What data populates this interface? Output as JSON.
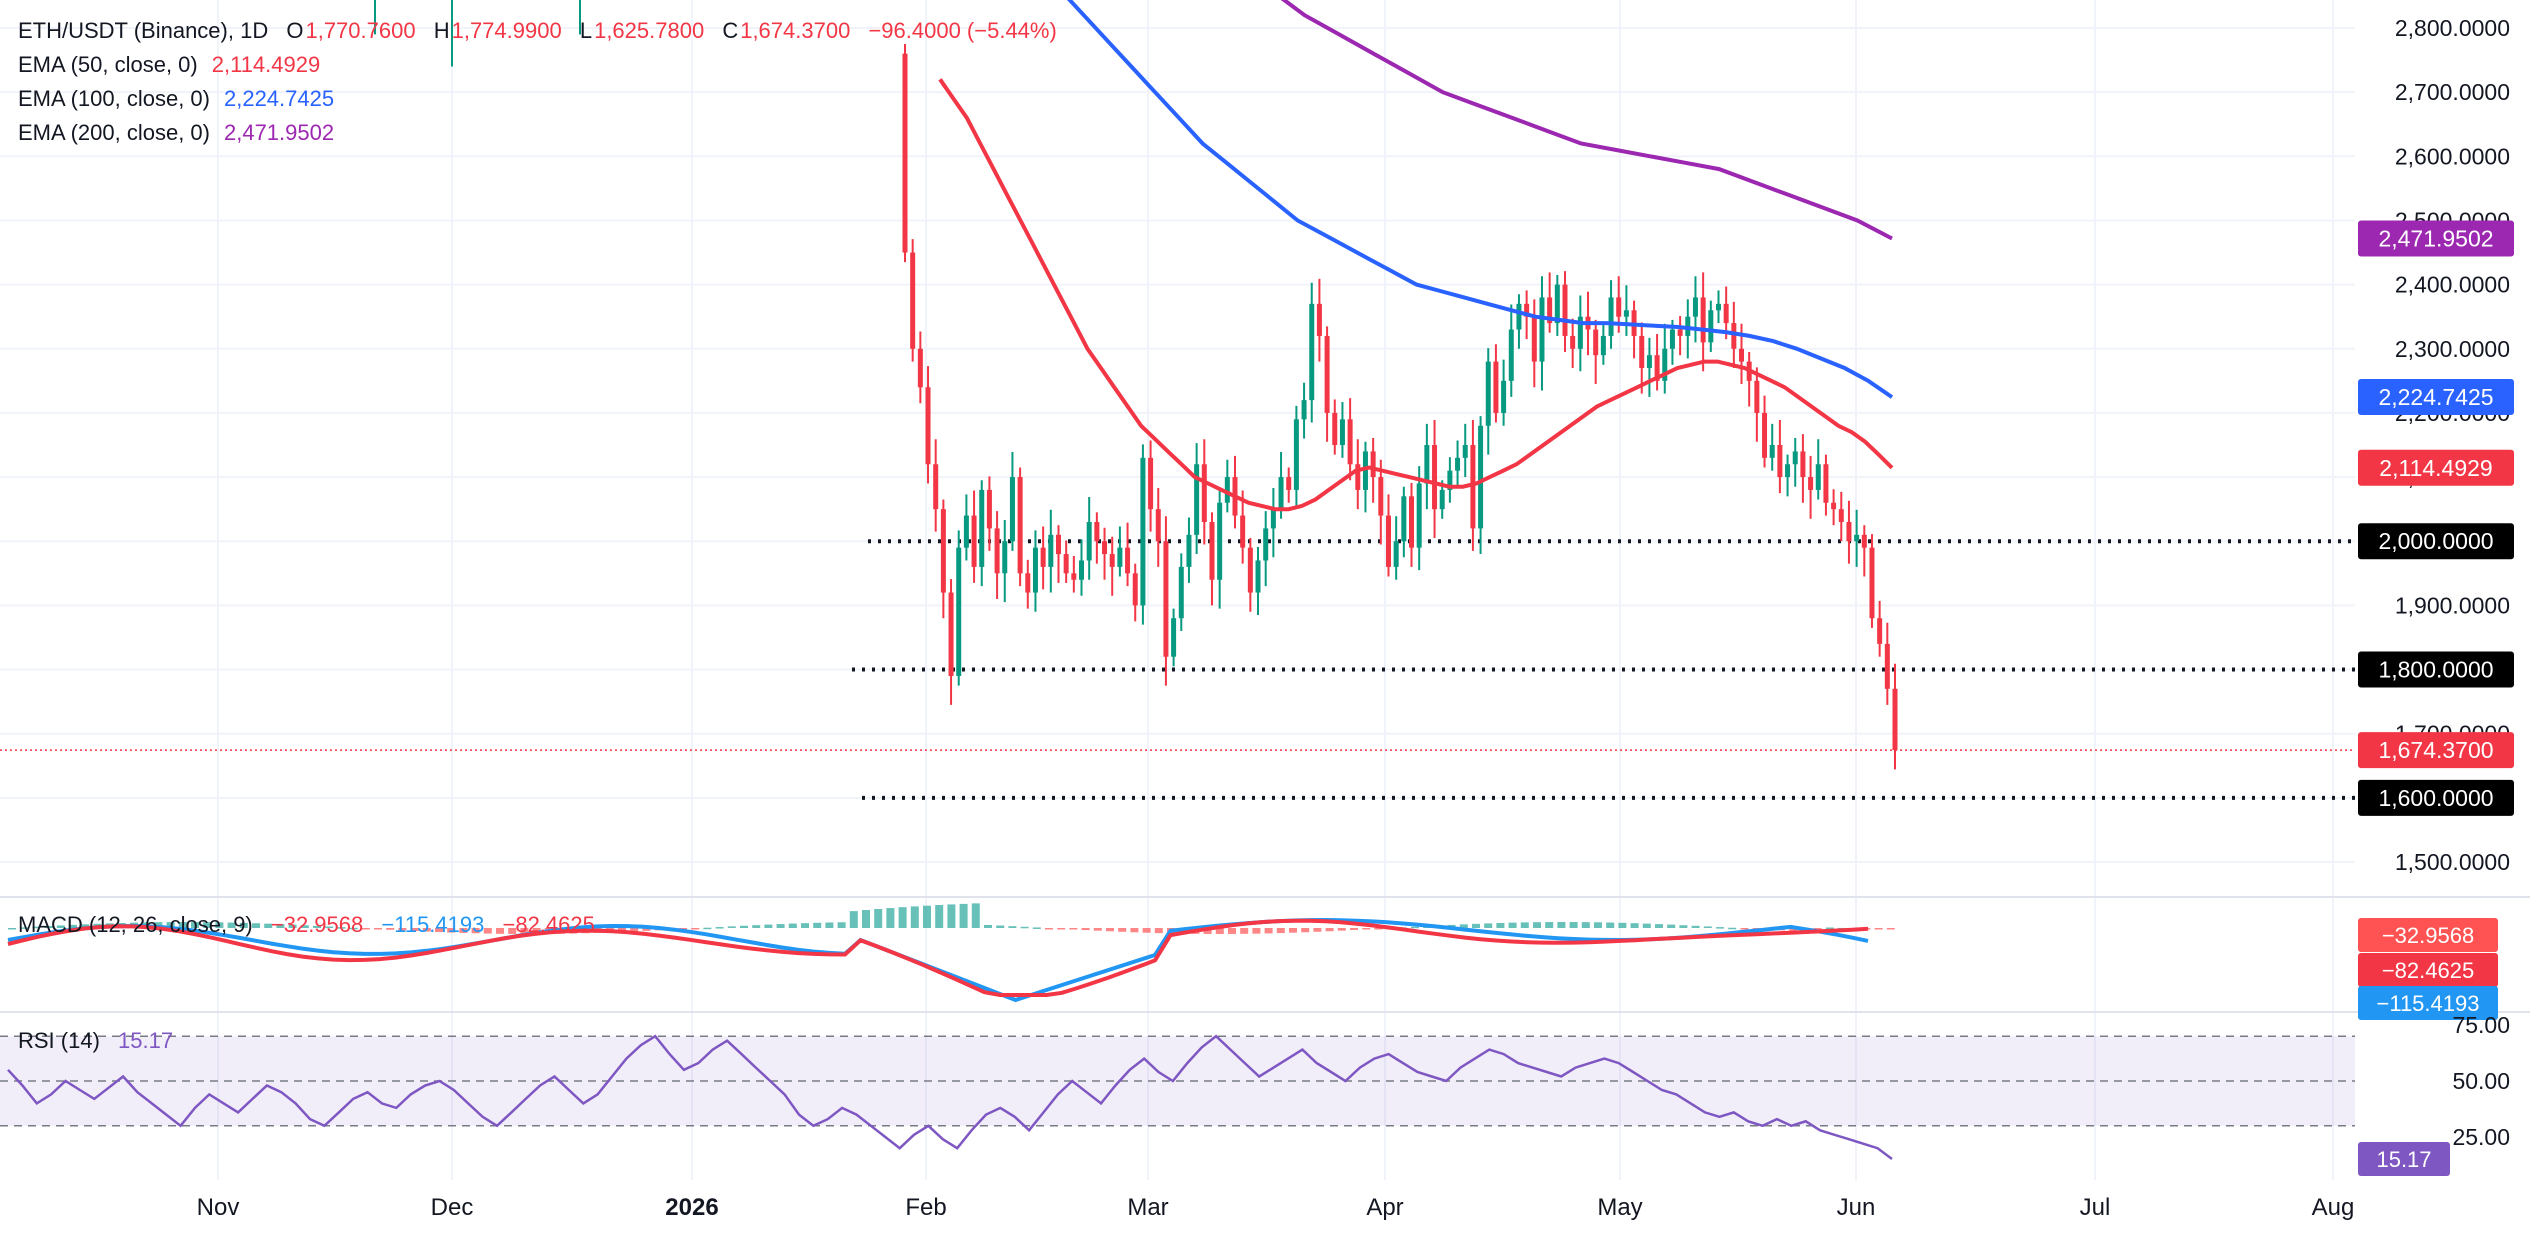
{
  "header": {
    "symbol": "ETH/USDT (Binance), 1D",
    "open_label": "O",
    "open": "1,770.7600",
    "high_label": "H",
    "high": "1,774.9900",
    "low_label": "L",
    "low": "1,625.7800",
    "close_label": "C",
    "close": "1,674.3700",
    "change": "−96.4000 (−5.44%)"
  },
  "indicators": {
    "ema50": {
      "label": "EMA (50, close, 0)",
      "value": "2,114.4929",
      "color": "#f23645"
    },
    "ema100": {
      "label": "EMA (100, close, 0)",
      "value": "2,224.7425",
      "color": "#2962ff"
    },
    "ema200": {
      "label": "EMA (200, close, 0)",
      "value": "2,471.9502",
      "color": "#9c27b0"
    },
    "macd": {
      "label": "MACD (12, 26, close, 9)",
      "hist": "−32.9568",
      "macd": "−115.4193",
      "signal": "−82.4625"
    },
    "rsi": {
      "label": "RSI (14)",
      "value": "15.17",
      "color": "#7e57c2"
    }
  },
  "colors": {
    "up": "#089981",
    "down": "#f23645",
    "grid": "#f0f3fa",
    "text": "#131722"
  },
  "chart_data": [
    {
      "type": "candlestick",
      "title": "ETH/USDT (Binance), 1D",
      "x_labels": [
        "Nov",
        "Dec",
        "2026",
        "Feb",
        "Mar",
        "Apr",
        "May",
        "Jun",
        "Jul",
        "Aug"
      ],
      "y_ticks": [
        "1,500.0000",
        "1,600.0000",
        "1,700.0000",
        "1,800.0000",
        "1,900.0000",
        "2,000.0000",
        "2,100.0000",
        "2,200.0000",
        "2,300.0000",
        "2,400.0000",
        "2,500.0000",
        "2,600.0000",
        "2,700.0000",
        "2,800.0000"
      ],
      "y_range": [
        1450,
        2850
      ],
      "horizontal_levels": [
        {
          "value": 2000,
          "label": "2,000.0000"
        },
        {
          "value": 1800,
          "label": "1,800.0000"
        },
        {
          "value": 1600,
          "label": "1,600.0000"
        }
      ],
      "last_price": {
        "value": 1674.37,
        "label": "1,674.3700"
      },
      "ema_tags": [
        {
          "value": 2471.9502,
          "label": "2,471.9502",
          "color": "#9c27b0"
        },
        {
          "value": 2224.7425,
          "label": "2,224.7425",
          "color": "#2962ff"
        },
        {
          "value": 2114.4929,
          "label": "2,114.4929",
          "color": "#f23645"
        }
      ],
      "closes_feb_jun": [
        2450,
        2300,
        2240,
        2120,
        2050,
        1920,
        1790,
        1990,
        2040,
        1960,
        2080,
        2020,
        1950,
        2000,
        2100,
        1950,
        1920,
        1990,
        1960,
        2010,
        1980,
        1950,
        1940,
        1970,
        2030,
        2000,
        1980,
        1960,
        1990,
        1950,
        1900,
        2130,
        2050,
        2000,
        1820,
        1880,
        1960,
        2010,
        2120,
        2030,
        1940,
        2060,
        2100,
        2040,
        1990,
        1920,
        1970,
        2020,
        2050,
        2100,
        2080,
        2190,
        2220,
        2370,
        2320,
        2200,
        2150,
        2190,
        2120,
        2080,
        2140,
        2100,
        2040,
        1960,
        2000,
        2070,
        1990,
        2090,
        2150,
        2050,
        2080,
        2110,
        2130,
        2150,
        2020,
        2180,
        2280,
        2200,
        2250,
        2330,
        2370,
        2350,
        2280,
        2380,
        2340,
        2400,
        2320,
        2300,
        2350,
        2330,
        2290,
        2320,
        2380,
        2350,
        2360,
        2320,
        2270,
        2290,
        2250,
        2300,
        2330,
        2320,
        2350,
        2380,
        2310,
        2360,
        2370,
        2340,
        2300,
        2280,
        2250,
        2200,
        2130,
        2150,
        2100,
        2120,
        2140,
        2100,
        2080,
        2120,
        2060,
        2050,
        2030,
        2000,
        2010,
        1990,
        1880,
        1840,
        1770,
        1674.37
      ],
      "ema_series": {
        "ema50_feb_jun": [
          2720,
          2690,
          2660,
          2620,
          2580,
          2540,
          2500,
          2460,
          2420,
          2380,
          2340,
          2300,
          2270,
          2240,
          2210,
          2180,
          2160,
          2140,
          2120,
          2100,
          2090,
          2080,
          2070,
          2060,
          2055,
          2050,
          2050,
          2055,
          2065,
          2080,
          2095,
          2110,
          2115,
          2110,
          2105,
          2100,
          2095,
          2090,
          2085,
          2085,
          2090,
          2100,
          2110,
          2120,
          2135,
          2150,
          2165,
          2180,
          2195,
          2210,
          2220,
          2230,
          2240,
          2250,
          2260,
          2270,
          2275,
          2280,
          2280,
          2275,
          2270,
          2260,
          2250,
          2240,
          2225,
          2210,
          2195,
          2180,
          2170,
          2155,
          2135,
          2114.49
        ],
        "ema100_feb_jun": [
          2860,
          2820,
          2780,
          2740,
          2700,
          2660,
          2620,
          2590,
          2560,
          2530,
          2500,
          2480,
          2460,
          2440,
          2420,
          2400,
          2390,
          2380,
          2370,
          2360,
          2350,
          2345,
          2340,
          2340,
          2338,
          2336,
          2334,
          2330,
          2326,
          2320,
          2312,
          2300,
          2285,
          2270,
          2250,
          2224.74
        ],
        "ema200_feb_jun": [
          2860,
          2820,
          2790,
          2760,
          2730,
          2700,
          2680,
          2660,
          2640,
          2620,
          2610,
          2600,
          2590,
          2580,
          2560,
          2540,
          2520,
          2500,
          2471.95
        ]
      }
    },
    {
      "type": "bar",
      "title": "MACD (12, 26, close, 9)",
      "series": [
        {
          "name": "MACD",
          "value": -115.4193,
          "color": "#2196f3"
        },
        {
          "name": "Signal",
          "value": -82.4625,
          "color": "#f23645"
        },
        {
          "name": "Histogram",
          "value": -32.9568,
          "color": "#f23645"
        }
      ],
      "tags": [
        {
          "label": "−32.9568",
          "color": "#ff5252"
        },
        {
          "label": "−82.4625",
          "color": "#f23645"
        },
        {
          "label": "−115.4193",
          "color": "#2196f3"
        }
      ]
    },
    {
      "type": "line",
      "title": "RSI (14)",
      "y_ticks": [
        "75.00",
        "50.00",
        "25.00"
      ],
      "bands": [
        70,
        50,
        30
      ],
      "last_value": {
        "value": 15.17,
        "label": "15.17"
      },
      "values": [
        55,
        48,
        40,
        44,
        50,
        46,
        42,
        47,
        52,
        45,
        40,
        35,
        30,
        38,
        44,
        40,
        36,
        42,
        48,
        45,
        40,
        33,
        30,
        36,
        42,
        45,
        40,
        38,
        44,
        48,
        50,
        46,
        40,
        34,
        30,
        36,
        42,
        48,
        52,
        46,
        40,
        44,
        52,
        60,
        66,
        70,
        62,
        55,
        58,
        64,
        68,
        62,
        56,
        50,
        44,
        35,
        30,
        33,
        38,
        35,
        30,
        25,
        20,
        26,
        30,
        24,
        20,
        28,
        35,
        38,
        34,
        28,
        36,
        44,
        50,
        45,
        40,
        48,
        55,
        60,
        54,
        50,
        58,
        65,
        70,
        64,
        58,
        52,
        56,
        60,
        64,
        58,
        54,
        50,
        56,
        60,
        62,
        58,
        54,
        52,
        50,
        56,
        60,
        64,
        62,
        58,
        56,
        54,
        52,
        56,
        58,
        60,
        58,
        54,
        50,
        46,
        44,
        40,
        36,
        34,
        36,
        32,
        30,
        33,
        30,
        32,
        28,
        26,
        24,
        22,
        20,
        15.17
      ]
    }
  ]
}
